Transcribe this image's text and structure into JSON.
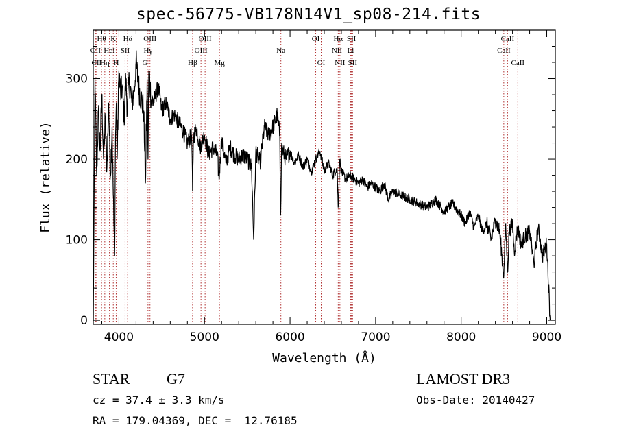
{
  "chart_data": {
    "type": "line",
    "title": "spec-56775-VB178N14V1_sp08-214.fits",
    "xlabel": "Wavelength (Å)",
    "ylabel": "Flux (relative)",
    "xlim": [
      3700,
      9100
    ],
    "ylim": [
      -5,
      360
    ],
    "xticks": [
      4000,
      5000,
      6000,
      7000,
      8000,
      9000
    ],
    "yticks": [
      0,
      100,
      200,
      300
    ],
    "series": [
      {
        "name": "flux",
        "x": [
          3700,
          3720,
          3740,
          3760,
          3780,
          3800,
          3820,
          3840,
          3860,
          3880,
          3900,
          3920,
          3940,
          3950,
          3960,
          3970,
          3980,
          4000,
          4020,
          4040,
          4060,
          4080,
          4100,
          4120,
          4150,
          4180,
          4200,
          4230,
          4260,
          4290,
          4300,
          4310,
          4330,
          4340,
          4350,
          4380,
          4420,
          4460,
          4500,
          4550,
          4600,
          4650,
          4700,
          4750,
          4800,
          4850,
          4861,
          4870,
          4900,
          4950,
          5000,
          5050,
          5100,
          5150,
          5170,
          5200,
          5250,
          5300,
          5350,
          5400,
          5450,
          5500,
          5550,
          5575,
          5600,
          5650,
          5700,
          5750,
          5800,
          5850,
          5880,
          5890,
          5900,
          5950,
          6000,
          6050,
          6100,
          6150,
          6200,
          6250,
          6300,
          6350,
          6400,
          6450,
          6500,
          6550,
          6563,
          6580,
          6600,
          6650,
          6700,
          6750,
          6800,
          6850,
          6900,
          6950,
          7000,
          7050,
          7100,
          7150,
          7200,
          7300,
          7400,
          7500,
          7600,
          7700,
          7800,
          7900,
          8000,
          8050,
          8100,
          8150,
          8200,
          8250,
          8300,
          8350,
          8400,
          8450,
          8498,
          8520,
          8542,
          8560,
          8600,
          8620,
          8662,
          8700,
          8750,
          8800,
          8850,
          8900,
          8950,
          9000,
          9040
        ],
        "values": [
          0,
          300,
          180,
          260,
          210,
          280,
          200,
          250,
          190,
          270,
          180,
          240,
          120,
          80,
          230,
          270,
          200,
          310,
          280,
          290,
          250,
          300,
          260,
          300,
          270,
          285,
          320,
          290,
          275,
          260,
          210,
          170,
          300,
          200,
          310,
          270,
          275,
          290,
          260,
          270,
          250,
          255,
          245,
          235,
          220,
          230,
          160,
          225,
          240,
          215,
          230,
          205,
          215,
          205,
          175,
          225,
          195,
          215,
          205,
          200,
          205,
          200,
          190,
          100,
          210,
          195,
          240,
          230,
          240,
          255,
          230,
          130,
          215,
          200,
          210,
          195,
          205,
          190,
          200,
          185,
          200,
          210,
          185,
          195,
          180,
          190,
          140,
          200,
          185,
          175,
          180,
          175,
          170,
          175,
          165,
          170,
          165,
          160,
          170,
          150,
          160,
          155,
          150,
          145,
          140,
          150,
          135,
          145,
          130,
          120,
          135,
          115,
          130,
          110,
          120,
          100,
          125,
          110,
          55,
          120,
          60,
          110,
          120,
          85,
          115,
          95,
          105,
          110,
          70,
          115,
          80,
          95,
          0
        ]
      }
    ],
    "lines": [
      {
        "label": "Hθ",
        "x": 3797,
        "row": 0
      },
      {
        "label": "K",
        "x": 3934,
        "row": 0
      },
      {
        "label": "Hδ",
        "x": 4102,
        "row": 0
      },
      {
        "label": "OII",
        "x": 3727,
        "row": 1
      },
      {
        "label": "HeI",
        "x": 3889,
        "row": 1
      },
      {
        "label": "SII",
        "x": 4072,
        "row": 1
      },
      {
        "label": "CII",
        "x": 3739,
        "row": 2
      },
      {
        "label": "Hη",
        "x": 3835,
        "row": 2
      },
      {
        "label": "H",
        "x": 3968,
        "row": 2
      },
      {
        "label": "OIII",
        "x": 4363,
        "row": 0
      },
      {
        "label": "Hγ",
        "x": 4340,
        "row": 1
      },
      {
        "label": "G",
        "x": 4305,
        "row": 2
      },
      {
        "label": "OIII",
        "x": 5007,
        "row": 0
      },
      {
        "label": "OIII",
        "x": 4959,
        "row": 1
      },
      {
        "label": "Hβ",
        "x": 4861,
        "row": 2
      },
      {
        "label": "Mg",
        "x": 5175,
        "row": 2
      },
      {
        "label": "Na",
        "x": 5893,
        "row": 1
      },
      {
        "label": "OI",
        "x": 6300,
        "row": 0
      },
      {
        "label": "OI",
        "x": 6364,
        "row": 2
      },
      {
        "label": "Hα",
        "x": 6563,
        "row": 0
      },
      {
        "label": "SII",
        "x": 6717,
        "row": 0
      },
      {
        "label": "NII",
        "x": 6548,
        "row": 1
      },
      {
        "label": "Li",
        "x": 6708,
        "row": 1
      },
      {
        "label": "NII",
        "x": 6583,
        "row": 2
      },
      {
        "label": "SII",
        "x": 6731,
        "row": 2
      },
      {
        "label": "CaII",
        "x": 8542,
        "row": 0
      },
      {
        "label": "CaII",
        "x": 8498,
        "row": 1
      },
      {
        "label": "CaII",
        "x": 8662,
        "row": 2
      }
    ]
  },
  "info": {
    "object_class": "STAR",
    "subclass": "G7",
    "survey": "LAMOST DR3",
    "redshift": "cz = 37.4 ± 3.3 km/s",
    "obs_date": "Obs-Date: 20140427",
    "coords": "RA = 179.04369, DEC =  12.76185"
  }
}
